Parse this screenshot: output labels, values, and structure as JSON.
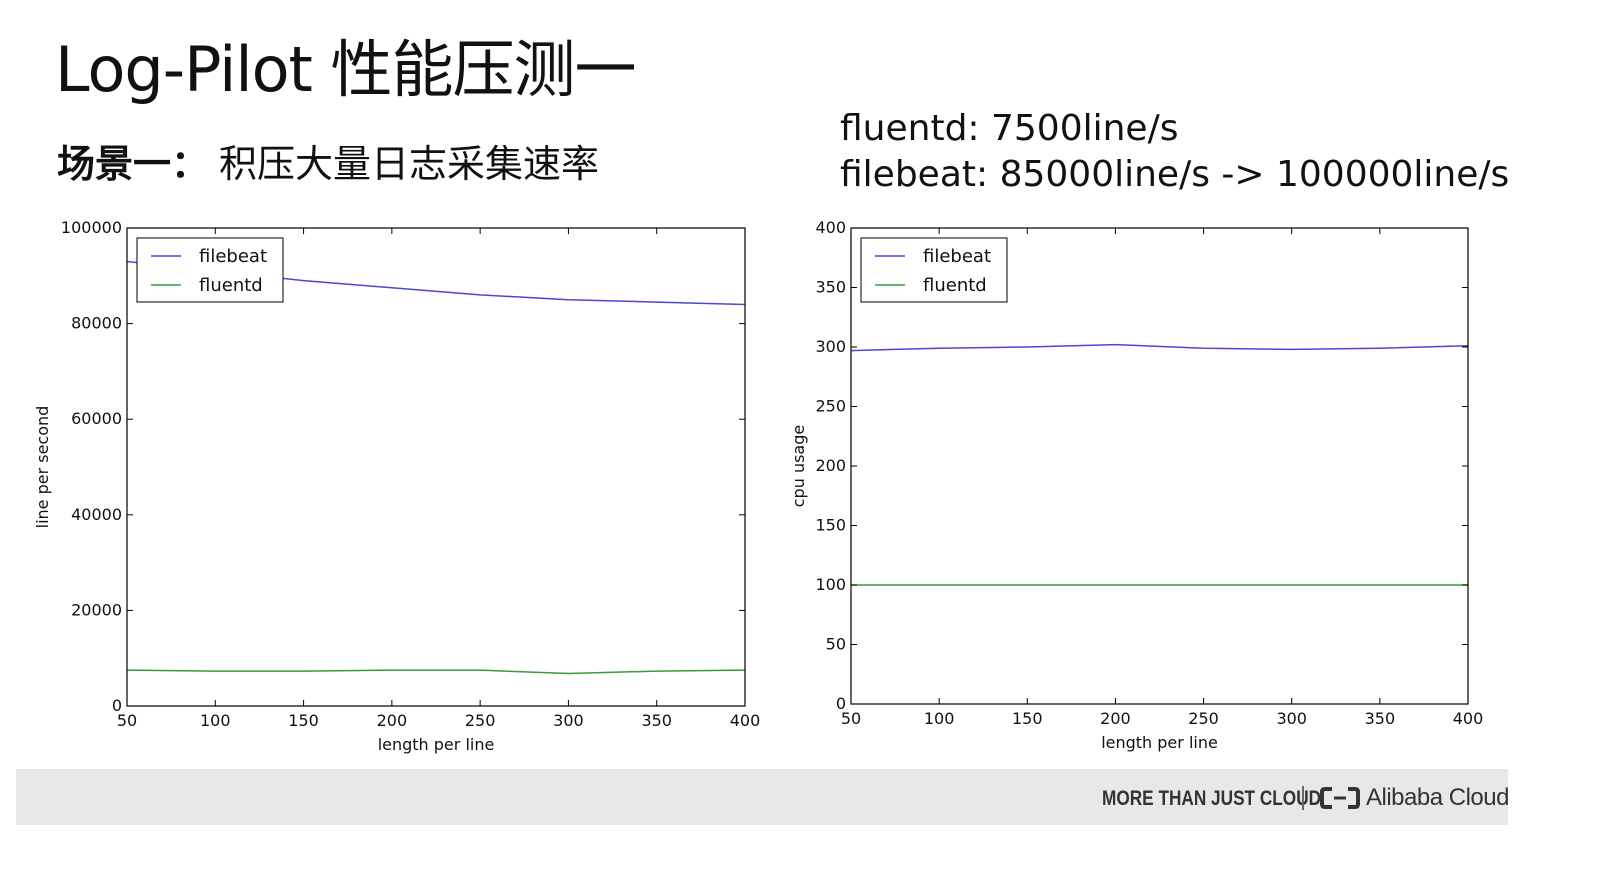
{
  "slide": {
    "title": "Log-Pilot 性能压测一",
    "scenario_label": "场景一：",
    "scenario_text": "积压大量日志采集速率",
    "rates": [
      "fluentd: 7500line/s",
      "filebeat: 85000line/s -> 100000line/s"
    ]
  },
  "footer": {
    "tagline": "MORE THAN JUST CLOUD",
    "brand": "Alibaba Cloud",
    "band_color": "#e8e8e8"
  },
  "chart_data": [
    {
      "type": "line",
      "title": "",
      "xlabel": "length per line",
      "ylabel": "line per second",
      "xlim": [
        50,
        400
      ],
      "ylim": [
        0,
        100000
      ],
      "x_ticks": [
        50,
        100,
        150,
        200,
        250,
        300,
        350,
        400
      ],
      "y_ticks": [
        0,
        20000,
        40000,
        60000,
        80000,
        100000
      ],
      "grid": false,
      "legend": "top-left",
      "series": [
        {
          "name": "filebeat",
          "color": "#4a4ad0",
          "x": [
            50,
            100,
            150,
            200,
            250,
            300,
            350,
            400
          ],
          "values": [
            93000,
            91000,
            89000,
            87500,
            86000,
            85000,
            84500,
            84000
          ]
        },
        {
          "name": "fluentd",
          "color": "#3a9a3a",
          "x": [
            50,
            100,
            150,
            200,
            250,
            300,
            350,
            400
          ],
          "values": [
            7500,
            7300,
            7300,
            7500,
            7500,
            6800,
            7300,
            7500
          ]
        }
      ]
    },
    {
      "type": "line",
      "title": "",
      "xlabel": "length per line",
      "ylabel": "cpu usage",
      "xlim": [
        50,
        400
      ],
      "ylim": [
        0,
        400
      ],
      "x_ticks": [
        50,
        100,
        150,
        200,
        250,
        300,
        350,
        400
      ],
      "y_ticks": [
        0,
        50,
        100,
        150,
        200,
        250,
        300,
        350,
        400
      ],
      "grid": false,
      "legend": "top-left",
      "series": [
        {
          "name": "filebeat",
          "color": "#4a4ad0",
          "x": [
            50,
            100,
            150,
            200,
            250,
            300,
            350,
            400
          ],
          "values": [
            297,
            299,
            300,
            302,
            299,
            298,
            299,
            301
          ]
        },
        {
          "name": "fluentd",
          "color": "#3a9a3a",
          "x": [
            50,
            100,
            150,
            200,
            250,
            300,
            350,
            400
          ],
          "values": [
            100,
            100,
            100,
            100,
            100,
            100,
            100,
            100
          ]
        }
      ]
    }
  ]
}
